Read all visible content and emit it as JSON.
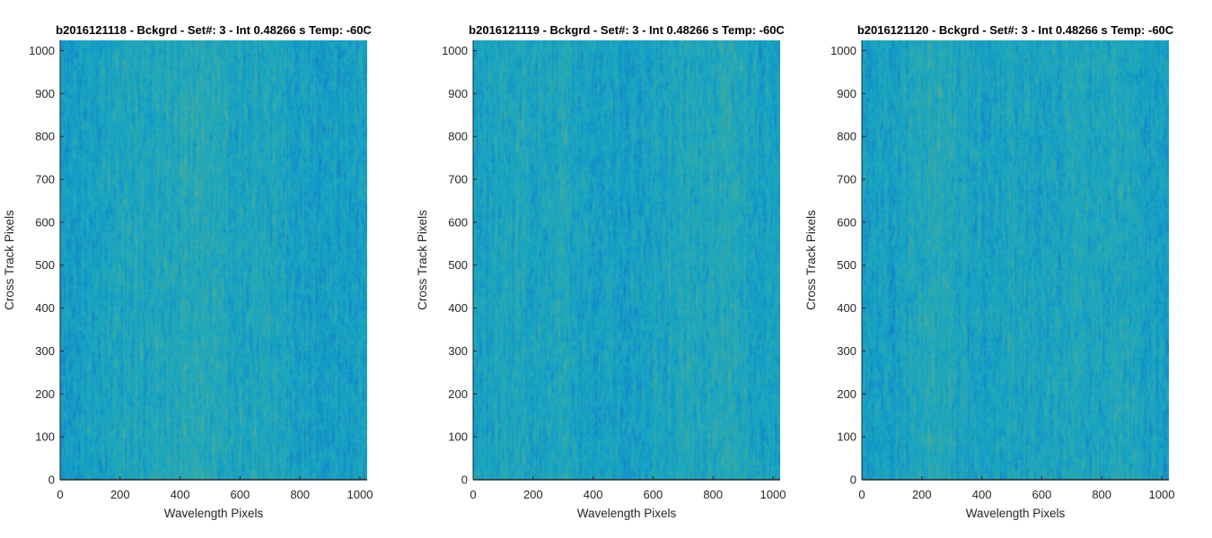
{
  "chart_data": [
    {
      "type": "heatmap",
      "title": "b2016121118 - Bckgrd - Set#: 3 - Int 0.48266 s Temp: -60C",
      "xlabel": "Wavelength Pixels",
      "ylabel": "Cross Track Pixels",
      "xlim": [
        0,
        1024
      ],
      "ylim": [
        0,
        1024
      ],
      "xticks": [
        0,
        200,
        400,
        600,
        800,
        1000
      ],
      "yticks": [
        0,
        100,
        200,
        300,
        400,
        500,
        600,
        700,
        800,
        900,
        1000
      ],
      "colormap": [
        "#1581c7",
        "#1495c8",
        "#17a5c2",
        "#2aa9b3",
        "#42ab9d",
        "#6fb385"
      ],
      "bright_columns": [
        450,
        520,
        220,
        680,
        350
      ],
      "noise_seed": 1118
    },
    {
      "type": "heatmap",
      "title": "b2016121119 - Bckgrd - Set#: 3 - Int 0.48266 s Temp: -60C",
      "xlabel": "Wavelength Pixels",
      "ylabel": "Cross Track Pixels",
      "xlim": [
        0,
        1024
      ],
      "ylim": [
        0,
        1024
      ],
      "xticks": [
        0,
        200,
        400,
        600,
        800,
        1000
      ],
      "yticks": [
        0,
        100,
        200,
        300,
        400,
        500,
        600,
        700,
        800,
        900,
        1000
      ],
      "colormap": [
        "#1581c7",
        "#1495c8",
        "#17a5c2",
        "#2aa9b3",
        "#42ab9d",
        "#6fb385"
      ],
      "bright_columns": [
        780,
        650,
        300,
        880,
        120
      ],
      "noise_seed": 1119
    },
    {
      "type": "heatmap",
      "title": "b2016121120 - Bckgrd - Set#: 3 - Int 0.48266 s Temp: -60C",
      "xlabel": "Wavelength Pixels",
      "ylabel": "Cross Track Pixels",
      "xlim": [
        0,
        1024
      ],
      "ylim": [
        0,
        1024
      ],
      "xticks": [
        0,
        200,
        400,
        600,
        800,
        1000
      ],
      "yticks": [
        0,
        100,
        200,
        300,
        400,
        500,
        600,
        700,
        800,
        900,
        1000
      ],
      "colormap": [
        "#1581c7",
        "#1495c8",
        "#17a5c2",
        "#2aa9b3",
        "#42ab9d",
        "#6fb385"
      ],
      "bright_columns": [
        280,
        700,
        200,
        500,
        850
      ],
      "noise_seed": 1120
    }
  ],
  "colors": {
    "axis": "#262626",
    "background": "#ffffff"
  }
}
